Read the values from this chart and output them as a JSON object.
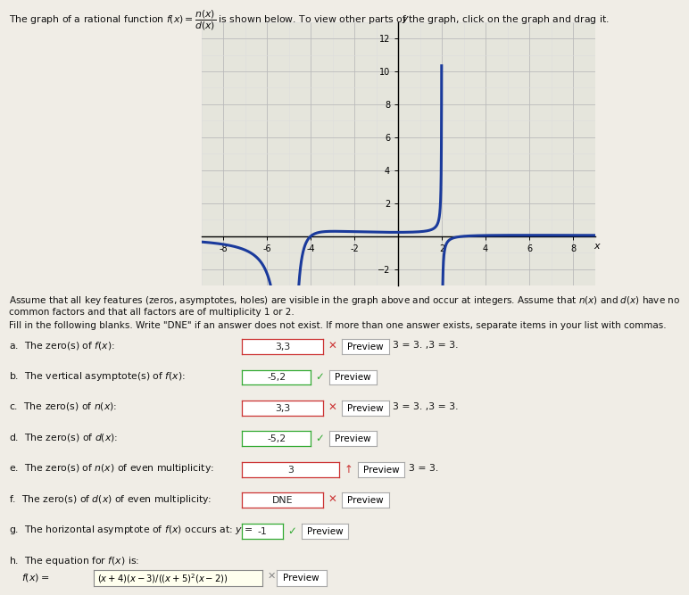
{
  "vertical_asymptotes": [
    -5,
    2
  ],
  "zeros_f": [
    -4,
    3
  ],
  "horizontal_asymptote": -1,
  "xmin": -9,
  "xmax": 9,
  "ymin": -3,
  "ymax": 13,
  "xticks": [
    -8,
    -6,
    -4,
    -2,
    2,
    4,
    6,
    8
  ],
  "yticks": [
    -2,
    2,
    4,
    6,
    8,
    10,
    12
  ],
  "curve_color": "#1a3a9c",
  "grid_color": "#bbbbbb",
  "grid_minor_color": "#dddddd",
  "plot_bg": "#e5e5dc",
  "page_bg": "#f0ede6",
  "line_width": 2.2,
  "title": "The graph of a rational function $f(x) = \\dfrac{n(x)}{d(x)}$ is shown below. To view other parts of the graph, click on the graph and drag it.",
  "assume_text1": "Assume that all key features (zeros, asymptotes, holes) are visible in the graph above and occur at integers. Assume that $n(x)$ and $d(x)$ have no",
  "assume_text2": "common factors and that all factors are of multiplicity 1 or 2.",
  "fill_instr": "Fill in the following blanks. Write \"DNE\" if an answer does not exist. If more than one answer exists, separate items in your list with commas.",
  "rows": [
    {
      "letter": "a",
      "label": "The zero(s) of $f(x)$:",
      "answer": "3,3",
      "mark": "x",
      "mark_color": "#cc3333",
      "box_border": "#cc3333",
      "box_bg": "#ffffff",
      "preview_eq": "3 = 3. ,3 = 3."
    },
    {
      "letter": "b",
      "label": "The vertical asymptote(s) of $f(x)$:",
      "answer": "-5,2",
      "mark": "v",
      "mark_color": "#33aa33",
      "box_border": "#33aa33",
      "box_bg": "#ffffff",
      "preview_eq": ""
    },
    {
      "letter": "c",
      "label": "The zero(s) of $n(x)$:",
      "answer": "3,3",
      "mark": "x",
      "mark_color": "#cc3333",
      "box_border": "#cc3333",
      "box_bg": "#ffffff",
      "preview_eq": "3 = 3. ,3 = 3."
    },
    {
      "letter": "d",
      "label": "The zero(s) of $d(x)$:",
      "answer": "-5,2",
      "mark": "v",
      "mark_color": "#33aa33",
      "box_border": "#33aa33",
      "box_bg": "#ffffff",
      "preview_eq": ""
    },
    {
      "letter": "e",
      "label": "The zero(s) of $n(x)$ of even multiplicity:",
      "answer": "3",
      "mark": "^",
      "mark_color": "#cc3333",
      "box_border": "#cc3333",
      "box_bg": "#ffffff",
      "preview_eq": "3 = 3."
    },
    {
      "letter": "f",
      "label": "The zero(s) of $d(x)$ of even multiplicity:",
      "answer": "DNE",
      "mark": "x",
      "mark_color": "#cc3333",
      "box_border": "#cc3333",
      "box_bg": "#ffffff",
      "preview_eq": ""
    },
    {
      "letter": "g",
      "label": "The horizontal asymptote of $f(x)$ occurs at: $y$ =",
      "answer": "-1",
      "mark": "v",
      "mark_color": "#33aa33",
      "box_border": "#33aa33",
      "box_bg": "#ffffff",
      "preview_eq": ""
    },
    {
      "letter": "h",
      "label": "The equation for $f(x)$ is:",
      "answer": "",
      "mark": "",
      "mark_color": "",
      "box_border": "",
      "box_bg": "",
      "preview_eq": ""
    }
  ],
  "eq_answer": "(x+4)(x-3)/(x+5)^2(x-2)",
  "eq_answer_display": "(x+4)(x-3)/((x+5)^2(x-2))"
}
